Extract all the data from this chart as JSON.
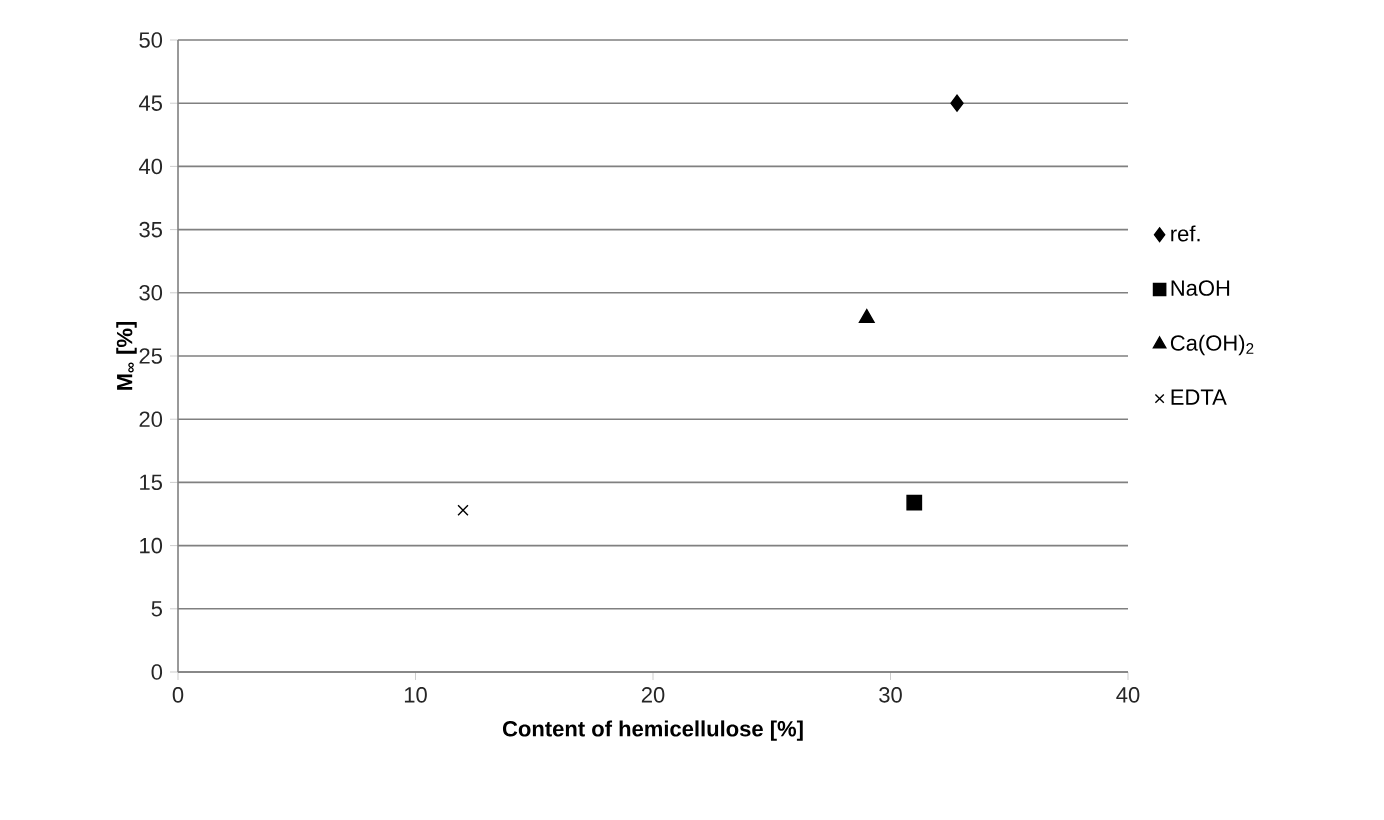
{
  "chart_data": {
    "type": "scatter",
    "xlabel": "Content of hemicellulose [%]",
    "ylabel": "M$_{∞}$ [%]",
    "xlim": [
      0,
      40
    ],
    "xticks": [
      0,
      10,
      20,
      30,
      40
    ],
    "ylim": [
      0,
      50
    ],
    "yticks": [
      0,
      5,
      10,
      15,
      20,
      25,
      30,
      35,
      40,
      45,
      50
    ],
    "grid": "y",
    "legend": "right",
    "series": [
      {
        "name": "ref.",
        "color": "#000000",
        "marker": "diamond",
        "x": [
          32.8
        ],
        "values": [
          45
        ]
      },
      {
        "name": "NaOH",
        "color": "#000000",
        "marker": "square",
        "x": [
          31
        ],
        "values": [
          13.4
        ]
      },
      {
        "name": "Ca(OH)$_{2}$",
        "color": "#000000",
        "marker": "triangle",
        "x": [
          29
        ],
        "values": [
          28
        ]
      },
      {
        "name": "EDTA",
        "color": "#000000",
        "marker": "cross",
        "x": [
          12
        ],
        "values": [
          12.8
        ]
      }
    ]
  }
}
